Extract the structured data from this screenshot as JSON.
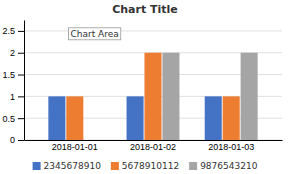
{
  "chart_data": {
    "type": "bar",
    "title": "Chart Title",
    "annotation": "Chart Area",
    "categories": [
      "2018-01-01",
      "2018-01-02",
      "2018-01-03"
    ],
    "series": [
      {
        "name": "2345678910",
        "color": "#4472C4",
        "values": [
          1,
          1,
          1
        ]
      },
      {
        "name": "5678910112",
        "color": "#ED7D31",
        "values": [
          1,
          2,
          1
        ]
      },
      {
        "name": "9876543210",
        "color": "#A5A5A5",
        "values": [
          0,
          2,
          2
        ]
      }
    ],
    "ylim": [
      0,
      2.75
    ],
    "yticks": [
      0,
      0.5,
      1,
      1.5,
      2,
      2.5
    ],
    "grid": true,
    "legend": "bottom"
  }
}
